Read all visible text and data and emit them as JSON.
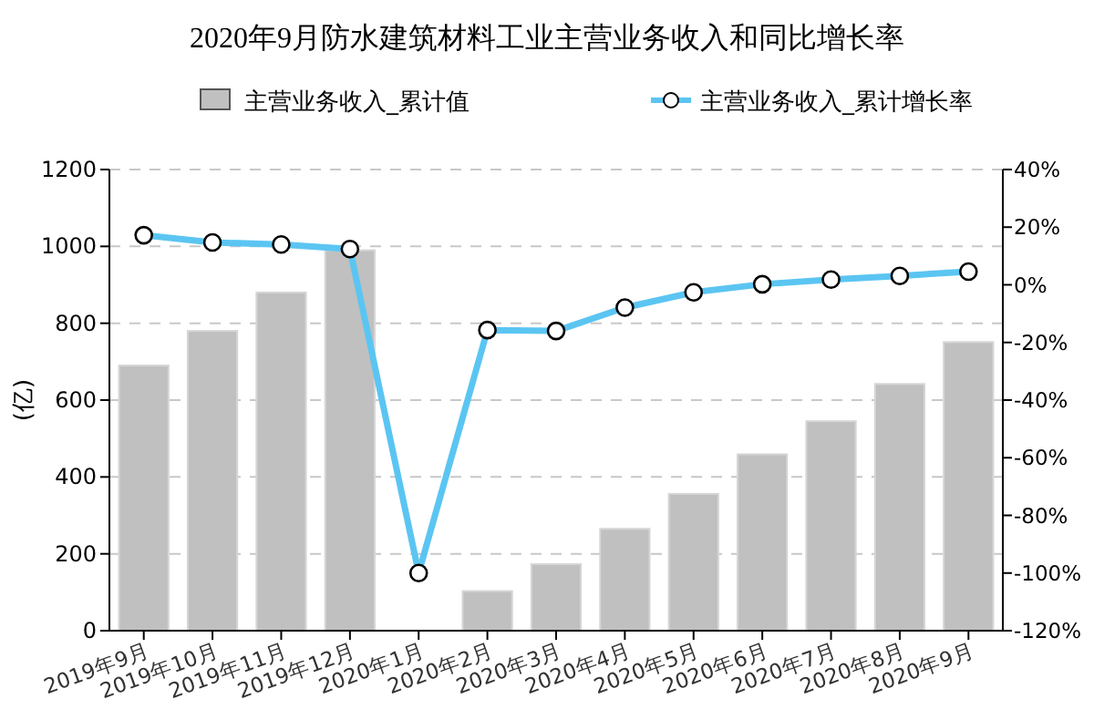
{
  "chart_data": {
    "type": "bar",
    "title": "2020年9月防水建筑材料工业主营业务收入和同比增长率",
    "ylabel": "(亿)",
    "categories": [
      "2019年9月",
      "2019年10月",
      "2019年11月",
      "2019年12月",
      "2020年1月",
      "2020年2月",
      "2020年3月",
      "2020年4月",
      "2020年5月",
      "2020年6月",
      "2020年7月",
      "2020年8月",
      "2020年9月"
    ],
    "series": [
      {
        "name": "主营业务收入_累计值",
        "color": "#c0c0c0",
        "values": [
          690,
          780,
          880,
          990,
          null,
          103,
          173,
          265,
          356,
          459,
          545,
          642,
          751
        ]
      },
      {
        "type": "line",
        "name": "主营业务收入_累计增长率",
        "color": "#5bc5f2",
        "axis": "y2",
        "marker": "circle",
        "line_style": "solid",
        "values": [
          17.2,
          14.7,
          14,
          12.4,
          -100,
          -15.7,
          -16,
          -7.9,
          -2.6,
          0.2,
          1.8,
          3.1,
          4.6
        ]
      }
    ],
    "ylim": [
      0,
      1200
    ],
    "yticks": [
      0,
      200,
      400,
      600,
      800,
      1000,
      1200
    ],
    "y2lim": [
      -120,
      40
    ],
    "y2ticks": [
      {
        "value": -120,
        "label": "-120%"
      },
      {
        "value": -100,
        "label": "-100%"
      },
      {
        "value": -80,
        "label": "-80%"
      },
      {
        "value": -60,
        "label": "-60%"
      },
      {
        "value": -40,
        "label": "-40%"
      },
      {
        "value": -20,
        "label": "-20%"
      },
      {
        "value": 0,
        "label": "0%"
      },
      {
        "value": 20,
        "label": "20%"
      },
      {
        "value": 40,
        "label": "40%"
      }
    ],
    "grid": "y",
    "legend": "top"
  }
}
